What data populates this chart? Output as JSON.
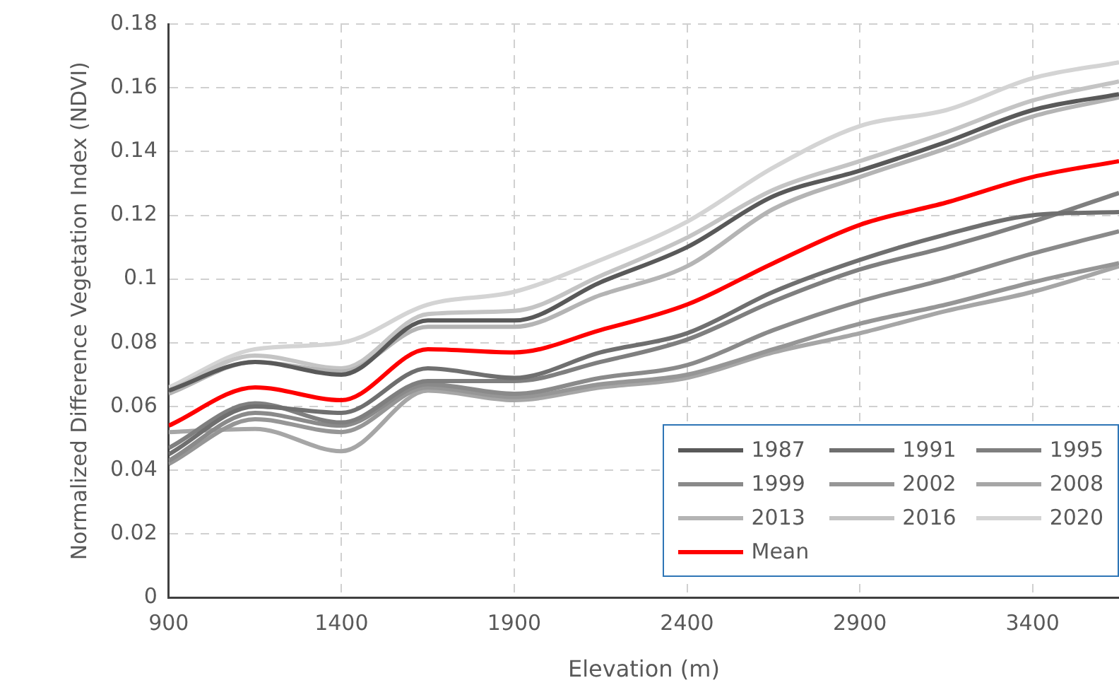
{
  "chart_data": {
    "type": "line",
    "xlabel": "Elevation (m)",
    "ylabel": "Normalized Difference Vegetation Index (NDVI)",
    "x": [
      900,
      1150,
      1400,
      1650,
      1900,
      2150,
      2400,
      2650,
      2900,
      3150,
      3400,
      3650
    ],
    "xlim": [
      900,
      3650
    ],
    "xticks": [
      900,
      1400,
      1900,
      2400,
      2900,
      3400
    ],
    "ylim": [
      0,
      0.18
    ],
    "yticks": [
      0,
      0.02,
      0.04,
      0.06,
      0.08,
      0.1,
      0.12,
      0.14,
      0.16,
      0.18
    ],
    "grid": true,
    "legend": "bottom right",
    "marker": "none",
    "line_style": "solid",
    "series": [
      {
        "name": "1987",
        "color": "#595959",
        "values": [
          0.065,
          0.074,
          0.07,
          0.087,
          0.087,
          0.099,
          0.11,
          0.126,
          0.134,
          0.143,
          0.153,
          0.158
        ]
      },
      {
        "name": "1991",
        "color": "#6f6f6f",
        "values": [
          0.045,
          0.06,
          0.058,
          0.072,
          0.069,
          0.077,
          0.083,
          0.096,
          0.106,
          0.114,
          0.12,
          0.121
        ]
      },
      {
        "name": "1995",
        "color": "#7f7f7f",
        "values": [
          0.047,
          0.061,
          0.055,
          0.068,
          0.068,
          0.074,
          0.081,
          0.093,
          0.103,
          0.11,
          0.118,
          0.127
        ]
      },
      {
        "name": "1999",
        "color": "#8a8a8a",
        "values": [
          0.043,
          0.058,
          0.054,
          0.067,
          0.064,
          0.069,
          0.073,
          0.084,
          0.093,
          0.1,
          0.108,
          0.115
        ]
      },
      {
        "name": "2002",
        "color": "#969696",
        "values": [
          0.042,
          0.056,
          0.052,
          0.066,
          0.063,
          0.067,
          0.07,
          0.078,
          0.086,
          0.092,
          0.099,
          0.105
        ]
      },
      {
        "name": "2008",
        "color": "#a6a6a6",
        "values": [
          0.052,
          0.053,
          0.046,
          0.065,
          0.062,
          0.066,
          0.069,
          0.077,
          0.083,
          0.09,
          0.096,
          0.104
        ]
      },
      {
        "name": "2013",
        "color": "#b4b4b4",
        "values": [
          0.064,
          0.074,
          0.071,
          0.085,
          0.085,
          0.095,
          0.104,
          0.122,
          0.132,
          0.141,
          0.151,
          0.157
        ]
      },
      {
        "name": "2016",
        "color": "#c4c4c4",
        "values": [
          0.065,
          0.076,
          0.072,
          0.089,
          0.09,
          0.101,
          0.113,
          0.128,
          0.137,
          0.146,
          0.156,
          0.162
        ]
      },
      {
        "name": "2020",
        "color": "#d4d4d4",
        "values": [
          0.066,
          0.078,
          0.08,
          0.092,
          0.096,
          0.106,
          0.118,
          0.135,
          0.148,
          0.153,
          0.163,
          0.168
        ]
      },
      {
        "name": "Mean",
        "color": "#ff0000",
        "values": [
          0.054,
          0.066,
          0.062,
          0.078,
          0.077,
          0.084,
          0.092,
          0.105,
          0.117,
          0.124,
          0.132,
          0.137
        ]
      }
    ]
  }
}
